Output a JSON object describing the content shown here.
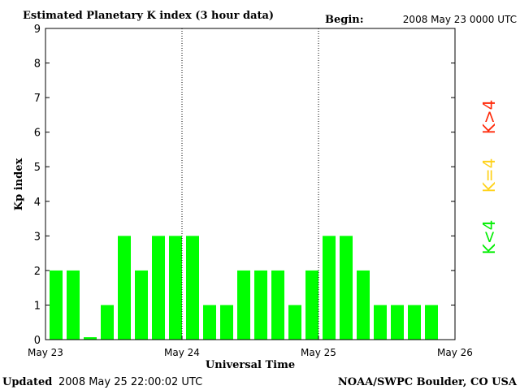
{
  "header": {
    "title": "Estimated Planetary K index (3 hour data)",
    "begin_label": "Begin:",
    "begin_value": "2008 May 23 0000 UTC"
  },
  "footer": {
    "updated_label": "Updated",
    "updated_value": "2008 May 25 22:00:02 UTC",
    "source": "NOAA/SWPC Boulder, CO USA"
  },
  "legend": [
    {
      "label": "K>4",
      "color": "#ff2a0a"
    },
    {
      "label": "K=4",
      "color": "#ffd21a"
    },
    {
      "label": "K<4",
      "color": "#00ee00"
    }
  ],
  "chart_data": {
    "type": "bar",
    "title": "Estimated Planetary K index (3 hour data)",
    "xlabel": "Universal Time",
    "ylabel": "Kp index",
    "ylim": [
      0,
      9
    ],
    "yticks": [
      "0",
      "1",
      "2",
      "3",
      "4",
      "5",
      "6",
      "7",
      "8",
      "9"
    ],
    "xticks": [
      "May 23",
      "May 24",
      "May 25",
      "May 26"
    ],
    "bars_per_day": 8,
    "days": 3,
    "bar_color": "#00ff00",
    "values": [
      2,
      2,
      0.07,
      1,
      3,
      2,
      3,
      3,
      3,
      1,
      1,
      2,
      2,
      2,
      1,
      2,
      3,
      3,
      2,
      1,
      1,
      1,
      1
    ],
    "grid": false
  }
}
